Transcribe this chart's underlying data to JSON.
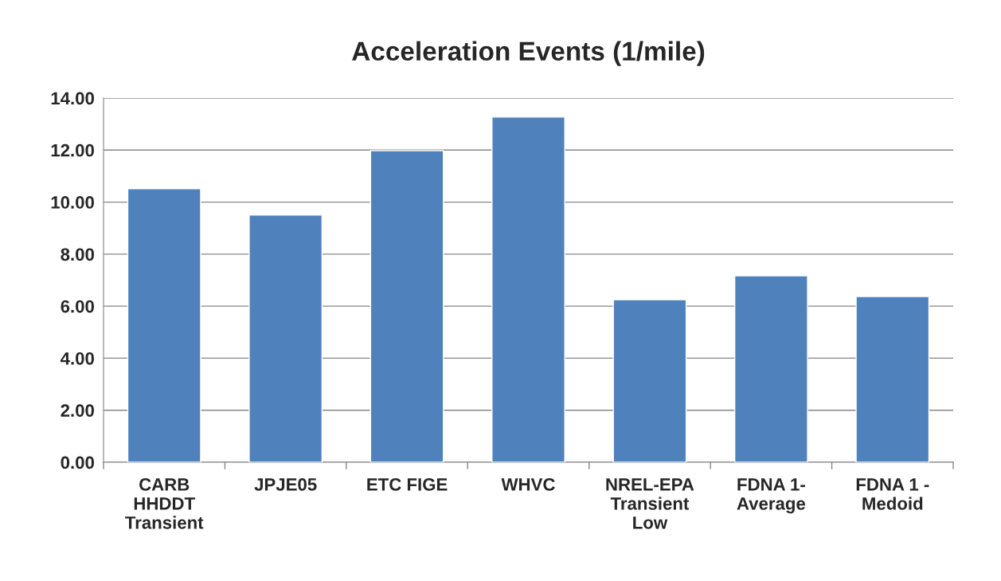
{
  "chart_data": {
    "type": "bar",
    "title": "Acceleration Events (1/mile)",
    "categories": [
      "CARB\nHHDDT\nTransient",
      "JPJE05",
      "ETC FIGE",
      "WHVC",
      "NREL-EPA\nTransient\nLow",
      "FDNA 1-\nAverage",
      "FDNA 1 -\nMedoid"
    ],
    "values": [
      10.51,
      9.5,
      11.98,
      13.27,
      6.25,
      7.17,
      6.37
    ],
    "color": "#4f81bd",
    "ylim": [
      0,
      14
    ],
    "yticks": [
      {
        "value": 0,
        "label": "0.00"
      },
      {
        "value": 2,
        "label": "2.00"
      },
      {
        "value": 4,
        "label": "4.00"
      },
      {
        "value": 6,
        "label": "6.00"
      },
      {
        "value": 8,
        "label": "8.00"
      },
      {
        "value": 10,
        "label": "10.00"
      },
      {
        "value": 12,
        "label": "12.00"
      },
      {
        "value": 14,
        "label": "14.00"
      }
    ],
    "grid": "y"
  }
}
